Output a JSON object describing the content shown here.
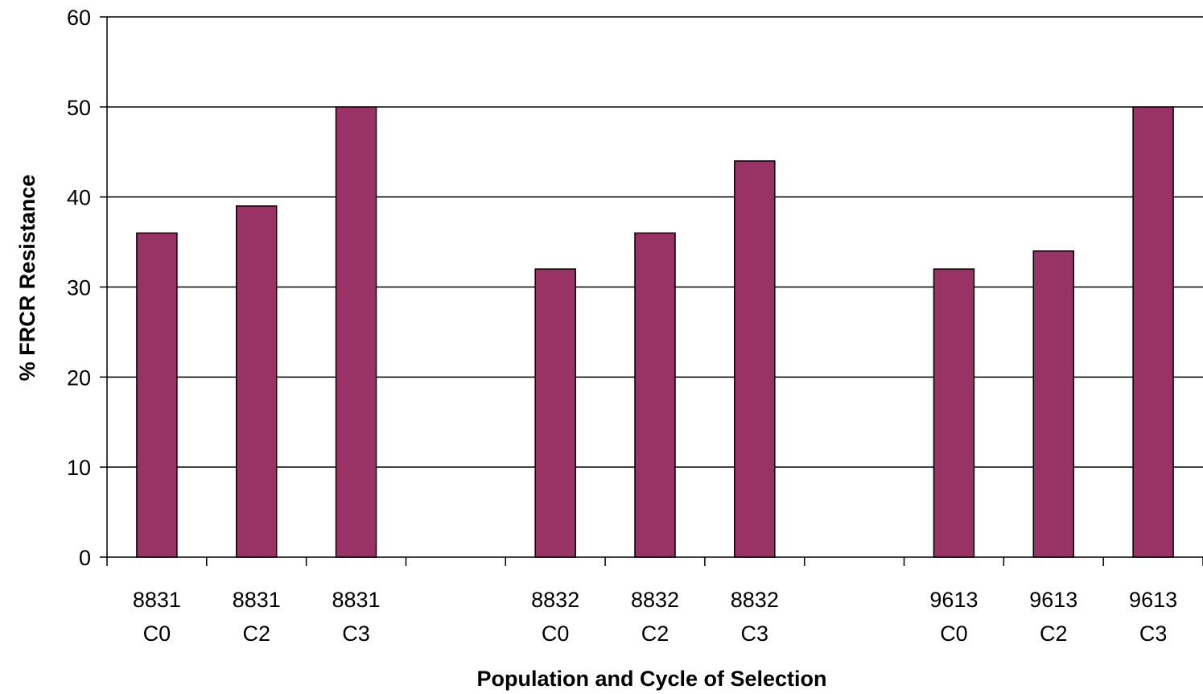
{
  "chart_data": {
    "type": "bar",
    "title": "",
    "xlabel": "Population and Cycle of Selection",
    "ylabel": "% FRCR Resistance",
    "ylim": [
      0,
      60
    ],
    "yticks": [
      "0",
      "10",
      "20",
      "30",
      "40",
      "50",
      "60"
    ],
    "grid": true,
    "bar_color": "#993366",
    "categories": [
      {
        "line1": "8831",
        "line2": "C0"
      },
      {
        "line1": "8831",
        "line2": "C2"
      },
      {
        "line1": "8831",
        "line2": "C3"
      },
      {
        "line1": "",
        "line2": ""
      },
      {
        "line1": "8832",
        "line2": "C0"
      },
      {
        "line1": "8832",
        "line2": "C2"
      },
      {
        "line1": "8832",
        "line2": "C3"
      },
      {
        "line1": "",
        "line2": ""
      },
      {
        "line1": "9613",
        "line2": "C0"
      },
      {
        "line1": "9613",
        "line2": "C2"
      },
      {
        "line1": "9613",
        "line2": "C3"
      }
    ],
    "values": [
      36,
      39,
      50,
      null,
      32,
      36,
      44,
      null,
      32,
      34,
      50
    ]
  }
}
